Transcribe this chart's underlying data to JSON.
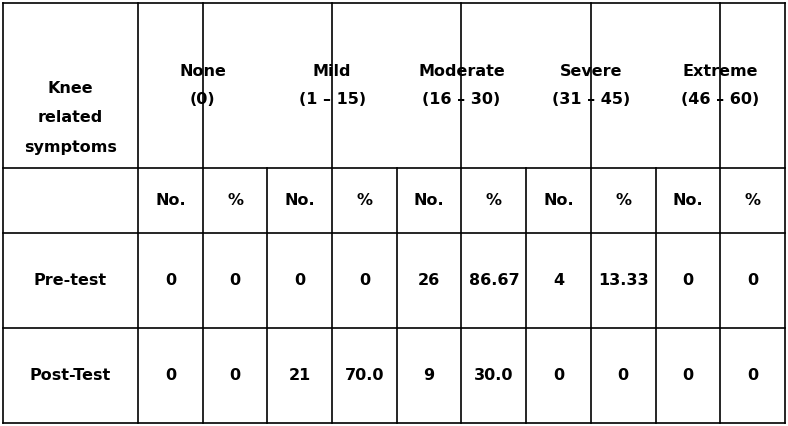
{
  "header_groups": [
    {
      "label": "None\n(0)",
      "cols": [
        1,
        2
      ]
    },
    {
      "label": "Mild\n(1 – 15)",
      "cols": [
        3,
        4
      ]
    },
    {
      "label": "Moderate\n(16 – 30)",
      "cols": [
        5,
        6
      ]
    },
    {
      "label": "Severe\n(31 – 45)",
      "cols": [
        7,
        8
      ]
    },
    {
      "label": "Extreme\n(46 – 60)",
      "cols": [
        9,
        10
      ]
    }
  ],
  "subheader": [
    "No.",
    "%",
    "No.",
    "%",
    "No.",
    "%",
    "No.",
    "%",
    "No.",
    "%"
  ],
  "row_label_header": "Knee\nrelated\nsymptoms",
  "data_rows": [
    [
      "Pre-test",
      "0",
      "0",
      "0",
      "0",
      "26",
      "86.67",
      "4",
      "13.33",
      "0",
      "0"
    ],
    [
      "Post-Test",
      "0",
      "0",
      "21",
      "70.0",
      "9",
      "30.0",
      "0",
      "0",
      "0",
      "0"
    ]
  ],
  "line_color": "#000000",
  "bg_color": "#ffffff",
  "text_color": "#000000",
  "font_size": 11.5
}
